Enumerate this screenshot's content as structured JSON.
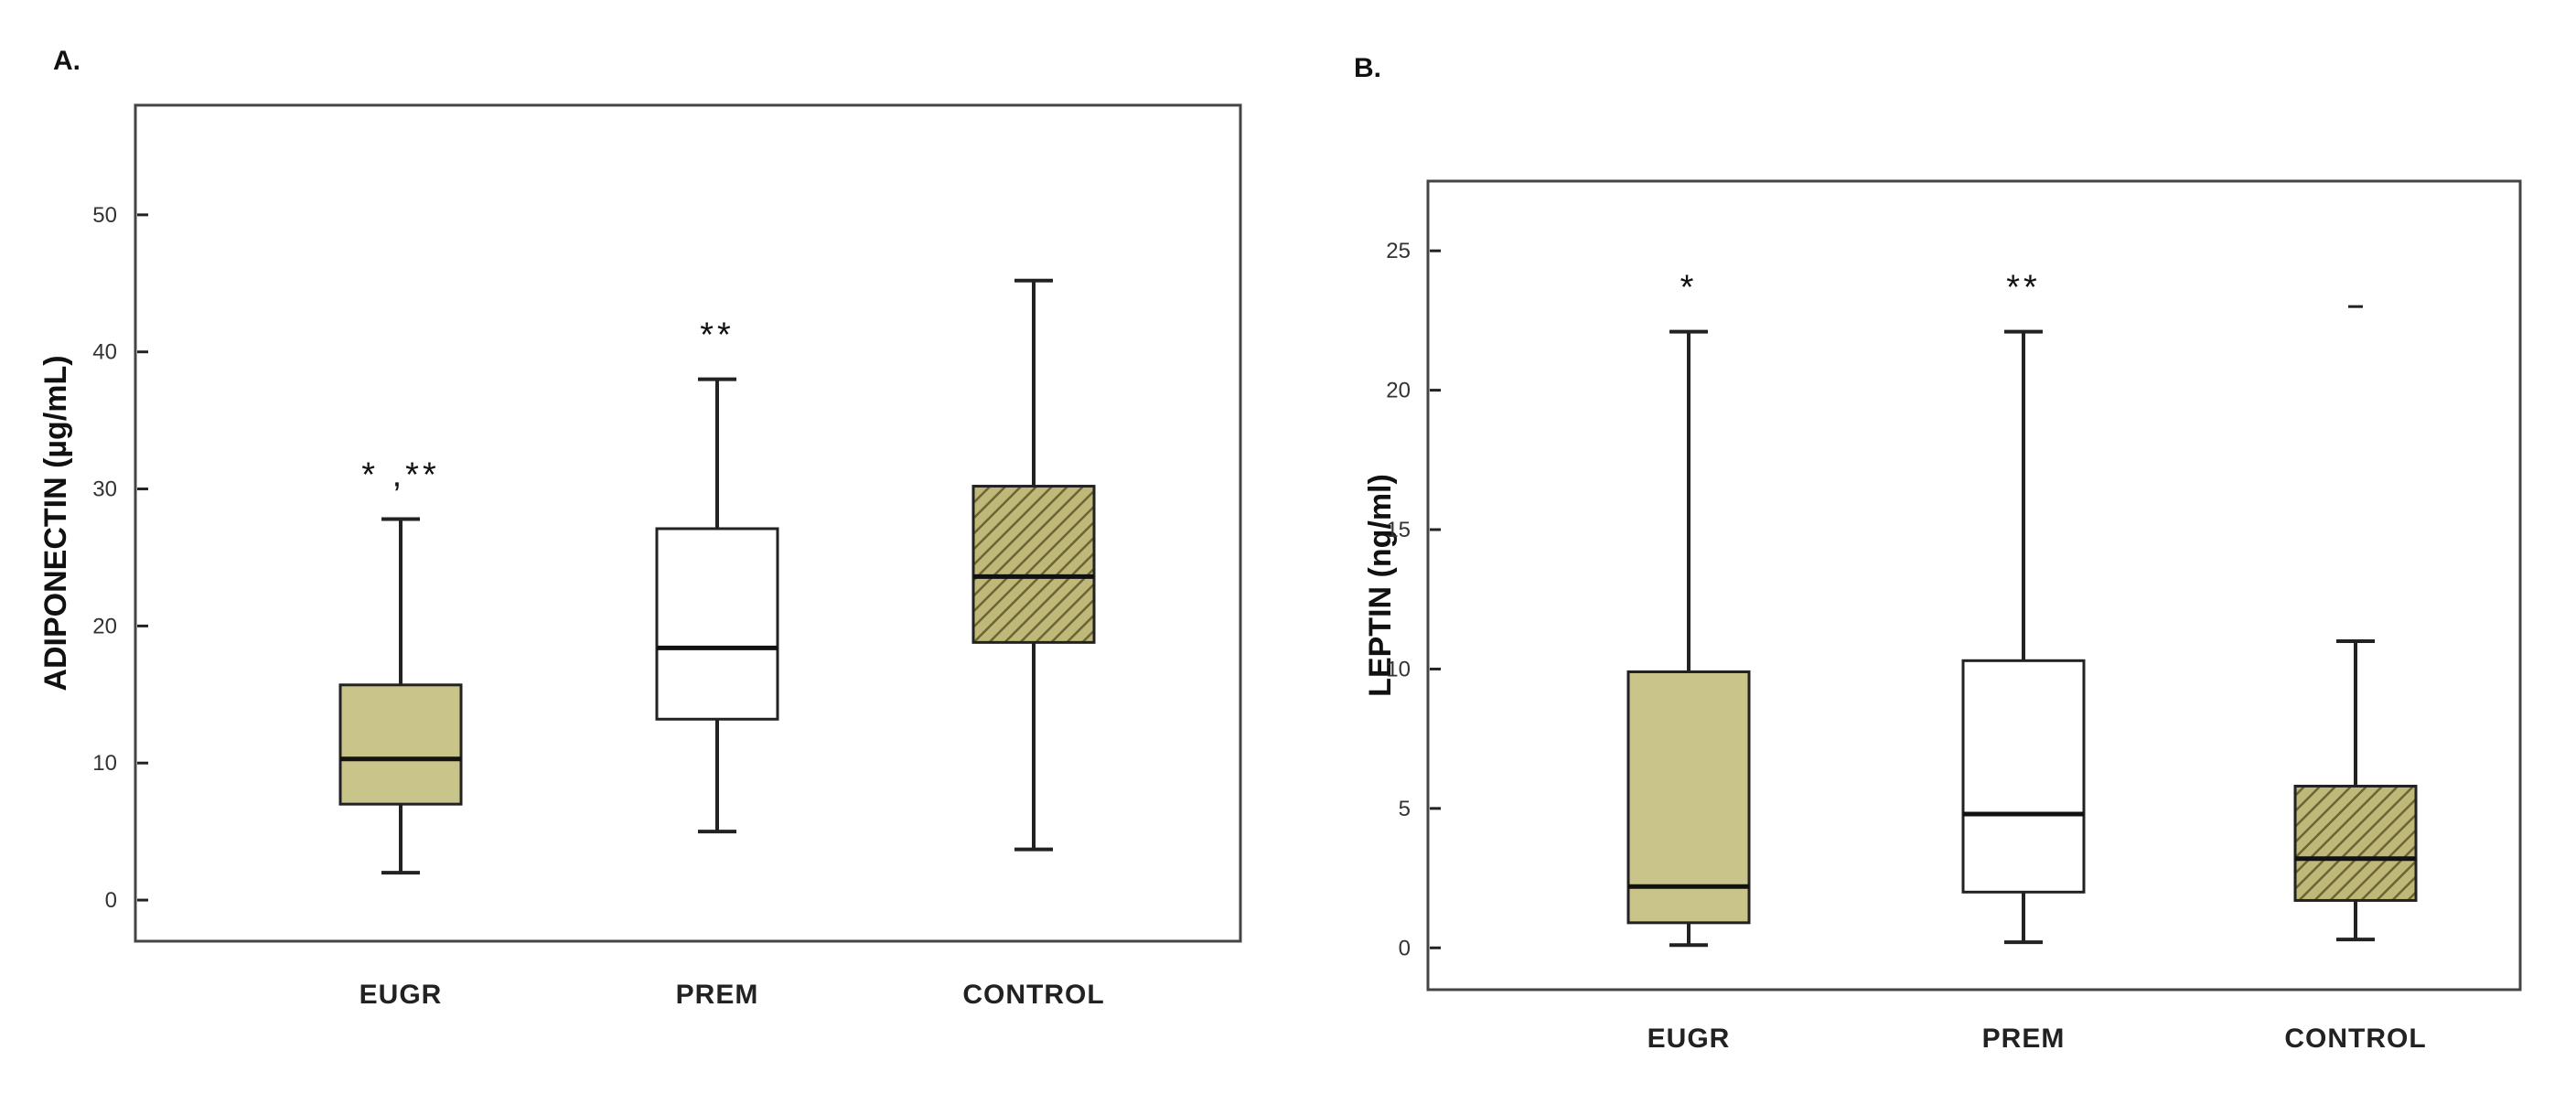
{
  "colors": {
    "eugr_fill": "#c9c58a",
    "prem_fill": "#ffffff",
    "control_fill": "#bfb878",
    "control_hatch": "#6a6535",
    "line": "#222222",
    "frame": "#444444"
  },
  "chart_data": [
    {
      "panel_label": "A.",
      "type": "boxplot",
      "ylabel": "ADIPONECTIN (µg/mL)",
      "ylim": [
        -3,
        58
      ],
      "yticks": [
        0,
        10,
        20,
        30,
        40,
        50
      ],
      "yticklabels": [
        "0",
        "10",
        "20",
        "30",
        "40",
        "50"
      ],
      "categories": [
        "EUGR",
        "PREM",
        "CONTROL"
      ],
      "boxes": [
        {
          "category": "EUGR",
          "whisker_low": 2,
          "q1": 7,
          "median": 10.3,
          "q3": 15.7,
          "whisker_high": 27.8,
          "fill": "solid",
          "annotation": "* ,**"
        },
        {
          "category": "PREM",
          "whisker_low": 5,
          "q1": 13.2,
          "median": 18.4,
          "q3": 27.1,
          "whisker_high": 38,
          "fill": "white",
          "annotation": "**"
        },
        {
          "category": "CONTROL",
          "whisker_low": 3.7,
          "q1": 18.8,
          "median": 23.6,
          "q3": 30.2,
          "whisker_high": 45.2,
          "fill": "hatched",
          "annotation": ""
        }
      ]
    },
    {
      "panel_label": "B.",
      "type": "boxplot",
      "ylabel": "LEPTIN (ng/ml)",
      "ylim": [
        -1.5,
        27.5
      ],
      "yticks": [
        0,
        5,
        10,
        15,
        20,
        25
      ],
      "yticklabels": [
        "0",
        "5",
        "10",
        "15",
        "20",
        "25"
      ],
      "categories": [
        "EUGR",
        "PREM",
        "CONTROL"
      ],
      "boxes": [
        {
          "category": "EUGR",
          "whisker_low": 0.1,
          "q1": 0.9,
          "median": 2.2,
          "q3": 9.9,
          "whisker_high": 22.1,
          "fill": "solid",
          "annotation": "*"
        },
        {
          "category": "PREM",
          "whisker_low": 0.2,
          "q1": 2.0,
          "median": 4.8,
          "q3": 10.3,
          "whisker_high": 22.1,
          "fill": "white",
          "annotation": "**"
        },
        {
          "category": "CONTROL",
          "whisker_low": 0.3,
          "q1": 1.7,
          "median": 3.2,
          "q3": 5.8,
          "whisker_high": 11.0,
          "fill": "hatched",
          "annotation": "",
          "outliers": [
            23.0
          ]
        }
      ]
    }
  ]
}
